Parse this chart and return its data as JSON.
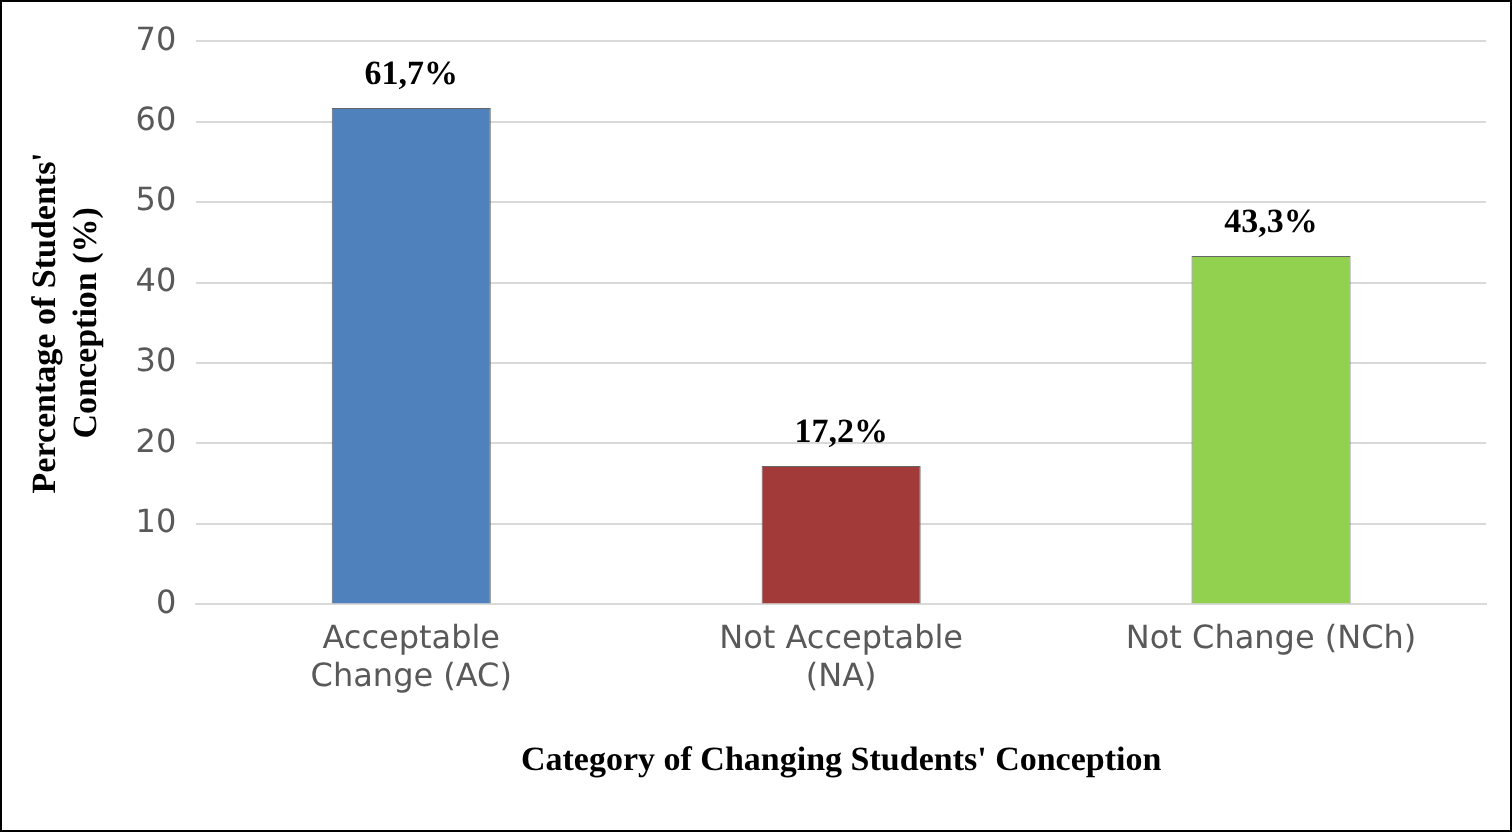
{
  "chart_data": {
    "type": "bar",
    "xlabel": "Category of Changing Students' Conception",
    "ylabel": "Percentage of Students' Conception (%)",
    "categories": [
      "Acceptable Change (AC)",
      "Not Acceptable (NA)",
      "Not Change (NCh)"
    ],
    "values": [
      61.7,
      17.2,
      43.3
    ],
    "colors": [
      "#4f81bd",
      "#a33a3a",
      "#92d050"
    ],
    "value_labels": [
      "61,7%",
      "17,2%",
      "43,3%"
    ],
    "ylim": [
      0,
      70
    ],
    "yticks": [
      0,
      10,
      20,
      30,
      40,
      50,
      60,
      70
    ],
    "grid": "y",
    "legend": false
  }
}
